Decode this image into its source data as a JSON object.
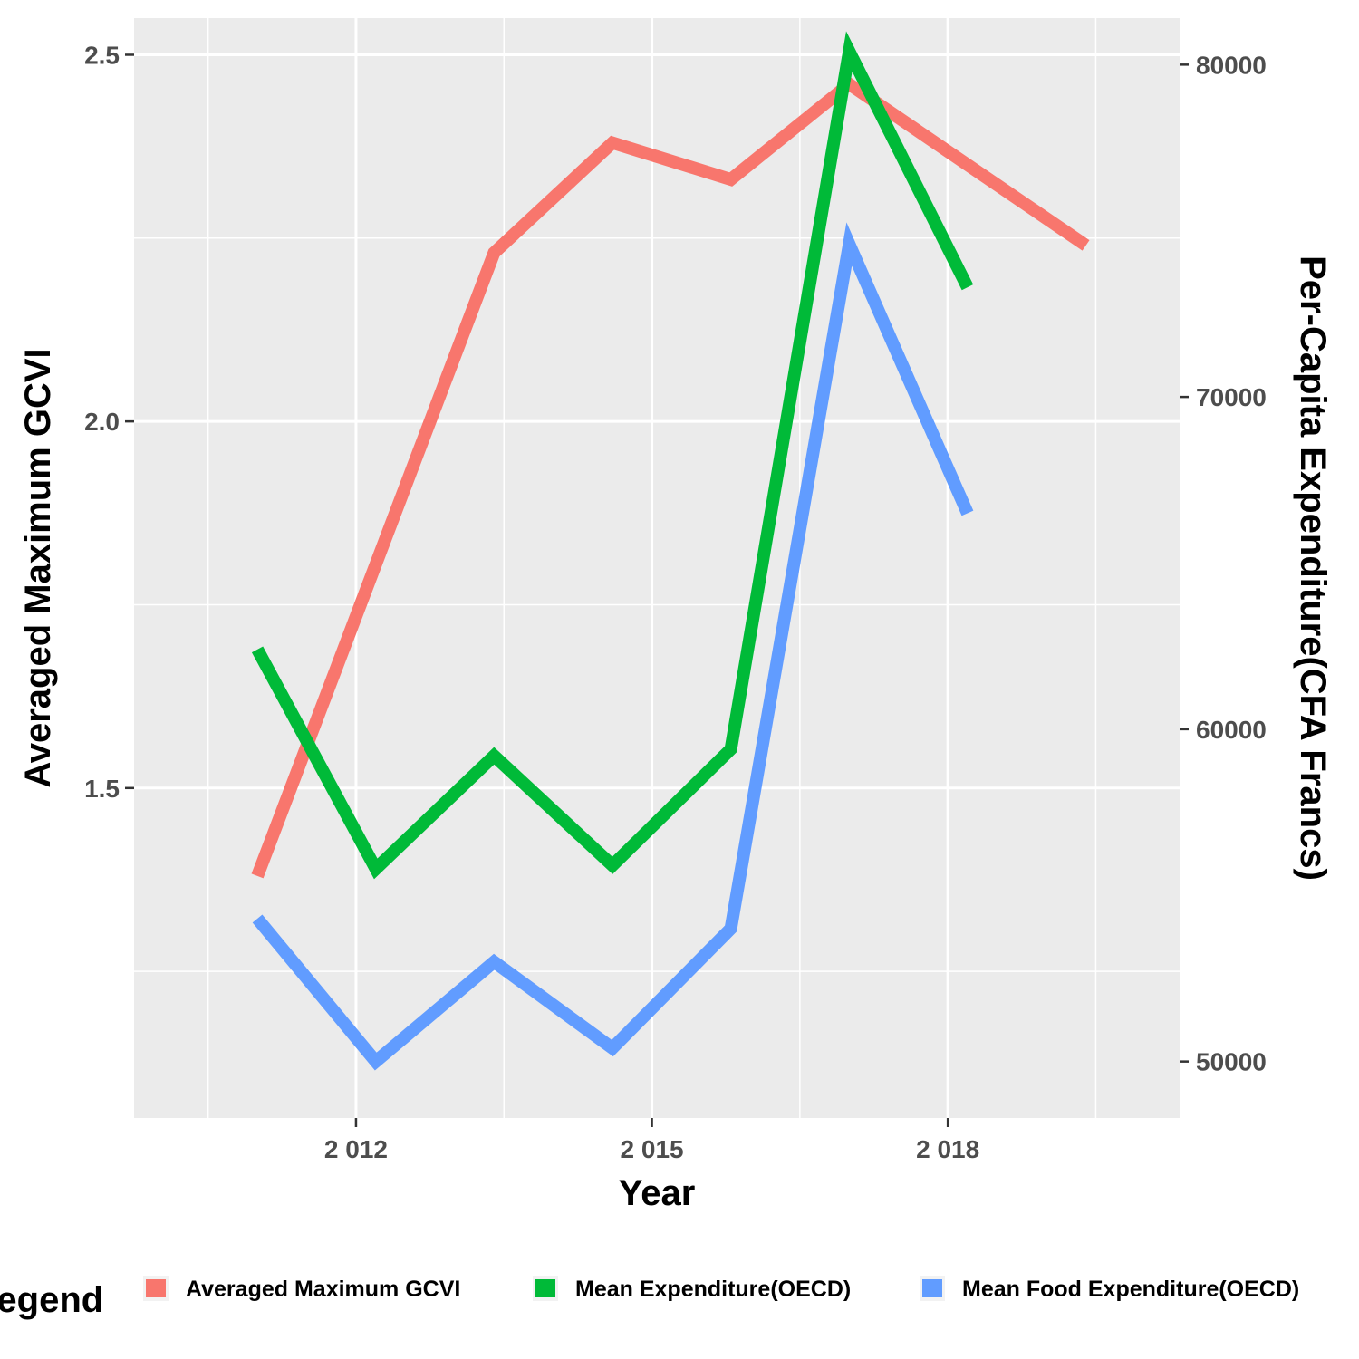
{
  "chart_data": {
    "type": "line",
    "xlabel": "Year",
    "ylabel_left": "Averaged Maximum GCVI",
    "ylabel_right": "Per-Capita Expenditure(CFA Francs)",
    "x": [
      2011,
      2012.2,
      2013.4,
      2014.6,
      2015.8,
      2017,
      2018.2,
      2019.4
    ],
    "xlim": [
      2009.75,
      2020.35
    ],
    "x_ticks": [
      2012,
      2015,
      2018
    ],
    "x_tick_labels": [
      "2 012",
      "2 015",
      "2 018"
    ],
    "x_minor": [
      2010.5,
      2013.5,
      2016.5,
      2019.5
    ],
    "ylim_left": [
      1.05,
      2.55
    ],
    "y_ticks_left": [
      1.5,
      2.0,
      2.5
    ],
    "y_tick_labels_left": [
      "1.5",
      "2.0",
      "2.5"
    ],
    "y_minor_left": [
      1.25,
      1.75,
      2.25
    ],
    "ylim_right": [
      48300,
      81400
    ],
    "y_ticks_right": [
      50000,
      60000,
      70000,
      80000
    ],
    "y_tick_labels_right": [
      "50000",
      "60000",
      "70000",
      "80000"
    ],
    "grid": true,
    "legend_position": "bottom",
    "legend_title": "Legend",
    "series": [
      {
        "name": "Averaged Maximum GCVI",
        "axis": "left",
        "color": "#F8766D",
        "values": [
          1.38,
          null,
          2.23,
          2.38,
          2.33,
          2.46,
          null,
          2.24
        ]
      },
      {
        "name": "Mean Expenditure(OECD)",
        "axis": "right",
        "color": "#00BA38",
        "values": [
          62400,
          55800,
          59200,
          55900,
          59400,
          80400,
          73300,
          null
        ]
      },
      {
        "name": "Mean Food Expenditure(OECD)",
        "axis": "right",
        "color": "#619CFF",
        "values": [
          54300,
          50000,
          53000,
          50400,
          54000,
          74600,
          66500,
          null
        ]
      }
    ]
  }
}
